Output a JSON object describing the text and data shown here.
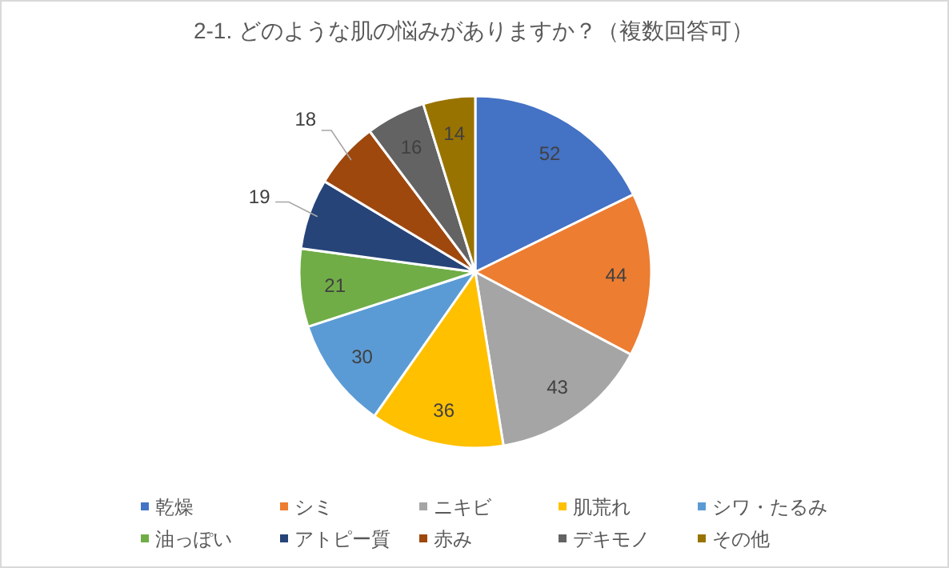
{
  "chart_data": {
    "type": "pie",
    "title": "2-1. どのような肌の悩みがありますか？（複数回答可）",
    "categories": [
      "乾燥",
      "シミ",
      "ニキビ",
      "肌荒れ",
      "シワ・たるみ",
      "油っぽい",
      "アトピー質",
      "赤み",
      "デキモノ",
      "その他"
    ],
    "values": [
      52,
      44,
      43,
      36,
      30,
      21,
      19,
      18,
      16,
      14
    ],
    "colors": [
      "#4472c4",
      "#ed7d31",
      "#a5a5a5",
      "#ffc000",
      "#5b9bd5",
      "#70ad47",
      "#264478",
      "#9e480e",
      "#636363",
      "#997300"
    ],
    "data_labels": true,
    "legend": "bottom"
  }
}
